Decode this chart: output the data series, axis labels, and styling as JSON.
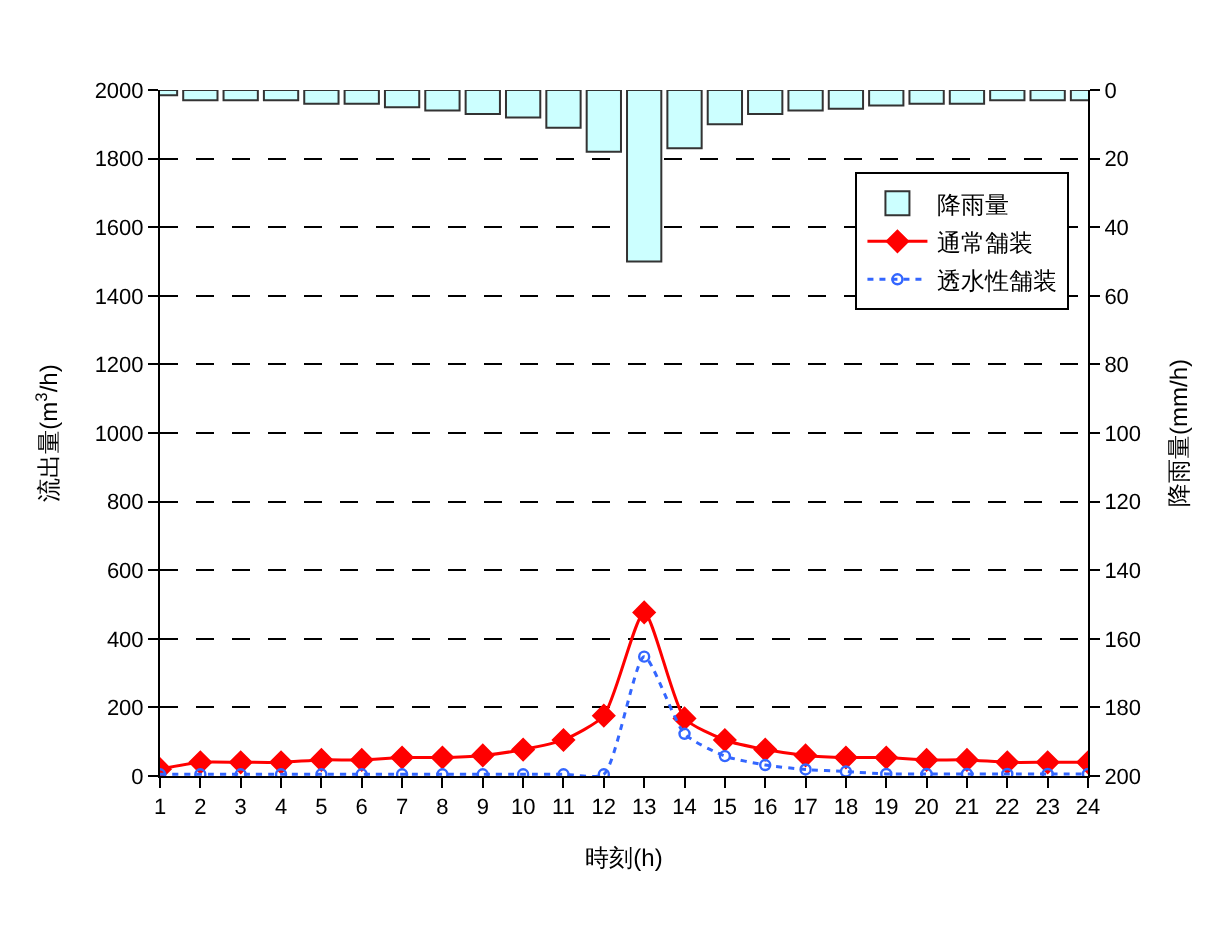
{
  "chart_data": {
    "type": "line",
    "xlabel": "時刻(h)",
    "ylabel": "流出量(m$^{3}$/h)",
    "y2label": "降雨量(mm/h)",
    "x": [
      1,
      2,
      3,
      4,
      5,
      6,
      7,
      8,
      9,
      10,
      11,
      12,
      13,
      14,
      15,
      16,
      17,
      18,
      19,
      20,
      21,
      22,
      23,
      24
    ],
    "xlim": [
      1,
      24
    ],
    "xticks": [
      1,
      2,
      3,
      4,
      5,
      6,
      7,
      8,
      9,
      10,
      11,
      12,
      13,
      14,
      15,
      16,
      17,
      18,
      19,
      20,
      21,
      22,
      23,
      24
    ],
    "ylim": [
      0,
      2000
    ],
    "yticks": [
      0,
      200,
      400,
      600,
      800,
      1000,
      1200,
      1400,
      1600,
      1800,
      2000
    ],
    "y2lim": [
      200,
      0
    ],
    "y2ticks": [
      0,
      20,
      40,
      60,
      80,
      100,
      120,
      140,
      160,
      180,
      200
    ],
    "grid": "y",
    "legend": "top right",
    "series": [
      {
        "name": "降雨量",
        "type": "bar",
        "axis": "y2",
        "color": "#ccffff",
        "values": [
          1.5,
          3,
          3,
          3,
          4,
          4,
          5,
          6,
          7,
          8,
          11,
          18,
          50,
          17,
          10,
          7,
          6,
          5.5,
          4.5,
          4,
          4,
          3,
          3,
          3
        ]
      },
      {
        "name": "通常舗装",
        "color": "#ff0000",
        "marker": "diamond",
        "line_style": "solid",
        "values": [
          20,
          40,
          40,
          40,
          47,
          47,
          54,
          54,
          60,
          77,
          105,
          176,
          477,
          168,
          105,
          77,
          60,
          54,
          54,
          47,
          47,
          40,
          40,
          40
        ]
      },
      {
        "name": "透水性舗装",
        "color": "#3366ff",
        "marker": "circle",
        "line_style": "dotted",
        "values": [
          5,
          5,
          5,
          5,
          5,
          5,
          5,
          5,
          5,
          5,
          5,
          5,
          348,
          123,
          58,
          32,
          19,
          13,
          6,
          6,
          6,
          6,
          6,
          6
        ]
      }
    ]
  }
}
